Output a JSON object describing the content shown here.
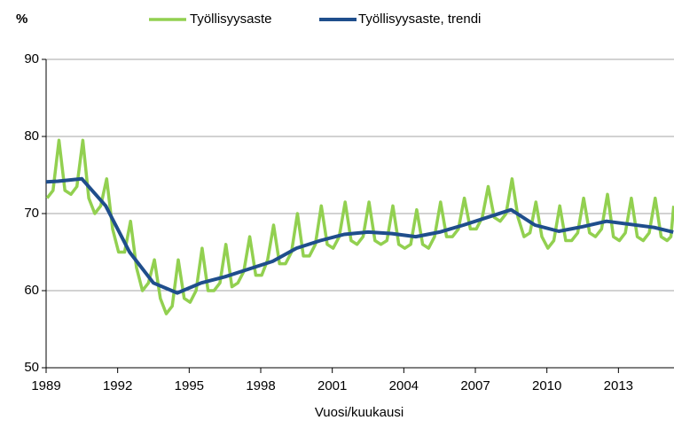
{
  "chart_data": {
    "type": "line",
    "y_label": "%",
    "x_label": "Vuosi/kuukausi",
    "xlim": [
      1989,
      2015.33
    ],
    "xticks": [
      1989,
      1992,
      1995,
      1998,
      2001,
      2004,
      2007,
      2010,
      2013
    ],
    "ylim": [
      50,
      90
    ],
    "yticks": [
      50,
      60,
      70,
      80,
      90
    ],
    "grid": true,
    "series": [
      {
        "name": "Työllisyysaste",
        "color": "#92d050",
        "x": [
          1989.04,
          1989.29,
          1989.54,
          1989.79,
          1990.04,
          1990.29,
          1990.54,
          1990.79,
          1991.04,
          1991.29,
          1991.54,
          1991.79,
          1992.04,
          1992.29,
          1992.54,
          1992.79,
          1993.04,
          1993.29,
          1993.54,
          1993.79,
          1994.04,
          1994.29,
          1994.54,
          1994.79,
          1995.04,
          1995.29,
          1995.54,
          1995.79,
          1996.04,
          1996.29,
          1996.54,
          1996.79,
          1997.04,
          1997.29,
          1997.54,
          1997.79,
          1998.04,
          1998.29,
          1998.54,
          1998.79,
          1999.04,
          1999.29,
          1999.54,
          1999.79,
          2000.04,
          2000.29,
          2000.54,
          2000.79,
          2001.04,
          2001.29,
          2001.54,
          2001.79,
          2002.04,
          2002.29,
          2002.54,
          2002.79,
          2003.04,
          2003.29,
          2003.54,
          2003.79,
          2004.04,
          2004.29,
          2004.54,
          2004.79,
          2005.04,
          2005.29,
          2005.54,
          2005.79,
          2006.04,
          2006.29,
          2006.54,
          2006.79,
          2007.04,
          2007.29,
          2007.54,
          2007.79,
          2008.04,
          2008.29,
          2008.54,
          2008.79,
          2009.04,
          2009.29,
          2009.54,
          2009.79,
          2010.04,
          2010.29,
          2010.54,
          2010.79,
          2011.04,
          2011.29,
          2011.54,
          2011.79,
          2012.04,
          2012.29,
          2012.54,
          2012.79,
          2013.04,
          2013.29,
          2013.54,
          2013.79,
          2014.04,
          2014.29,
          2014.54,
          2014.79,
          2015.04,
          2015.2,
          2015.32
        ],
        "values": [
          72,
          73,
          79.5,
          73,
          72.5,
          73.5,
          79.5,
          72,
          70,
          71,
          74.5,
          68,
          65,
          65,
          69,
          63,
          60,
          61,
          64,
          59,
          57,
          58,
          64,
          59,
          58.5,
          60,
          65.5,
          60,
          60,
          61,
          66,
          60.5,
          61,
          62.5,
          67,
          62,
          62,
          64,
          68.5,
          63.5,
          63.5,
          65,
          70,
          64.5,
          64.5,
          66,
          71,
          66,
          65.5,
          67,
          71.5,
          66.5,
          66,
          67,
          71.5,
          66.5,
          66,
          66.5,
          71,
          66,
          65.5,
          66,
          70.5,
          66,
          65.5,
          67,
          71.5,
          67,
          67,
          68,
          72,
          68,
          68,
          69.5,
          73.5,
          69.5,
          69,
          70,
          74.5,
          69.5,
          67,
          67.5,
          71.5,
          67,
          65.5,
          66.5,
          71,
          66.5,
          66.5,
          67.5,
          72,
          67.5,
          67,
          68,
          72.5,
          67,
          66.5,
          67.5,
          72,
          67,
          66.5,
          67.5,
          72,
          67,
          66.5,
          67,
          71
        ]
      },
      {
        "name": "Työllisyysaste, trendi",
        "color": "#1f4e8c",
        "x": [
          1989,
          1989.5,
          1990.5,
          1991.5,
          1992.5,
          1993.5,
          1994.5,
          1995.5,
          1996.5,
          1997.5,
          1998.5,
          1999.5,
          2000.5,
          2001.5,
          2002.5,
          2003.5,
          2004.5,
          2005.5,
          2006.5,
          2007.5,
          2008.5,
          2009.5,
          2010.5,
          2011.5,
          2012.5,
          2013.5,
          2014.5,
          2015.3
        ],
        "values": [
          74.1,
          74.2,
          74.5,
          71,
          65,
          61,
          59.7,
          61,
          61.8,
          62.8,
          63.8,
          65.5,
          66.5,
          67.3,
          67.6,
          67.4,
          67,
          67.6,
          68.5,
          69.5,
          70.5,
          68.5,
          67.7,
          68.3,
          69,
          68.6,
          68.2,
          67.6
        ]
      }
    ]
  }
}
